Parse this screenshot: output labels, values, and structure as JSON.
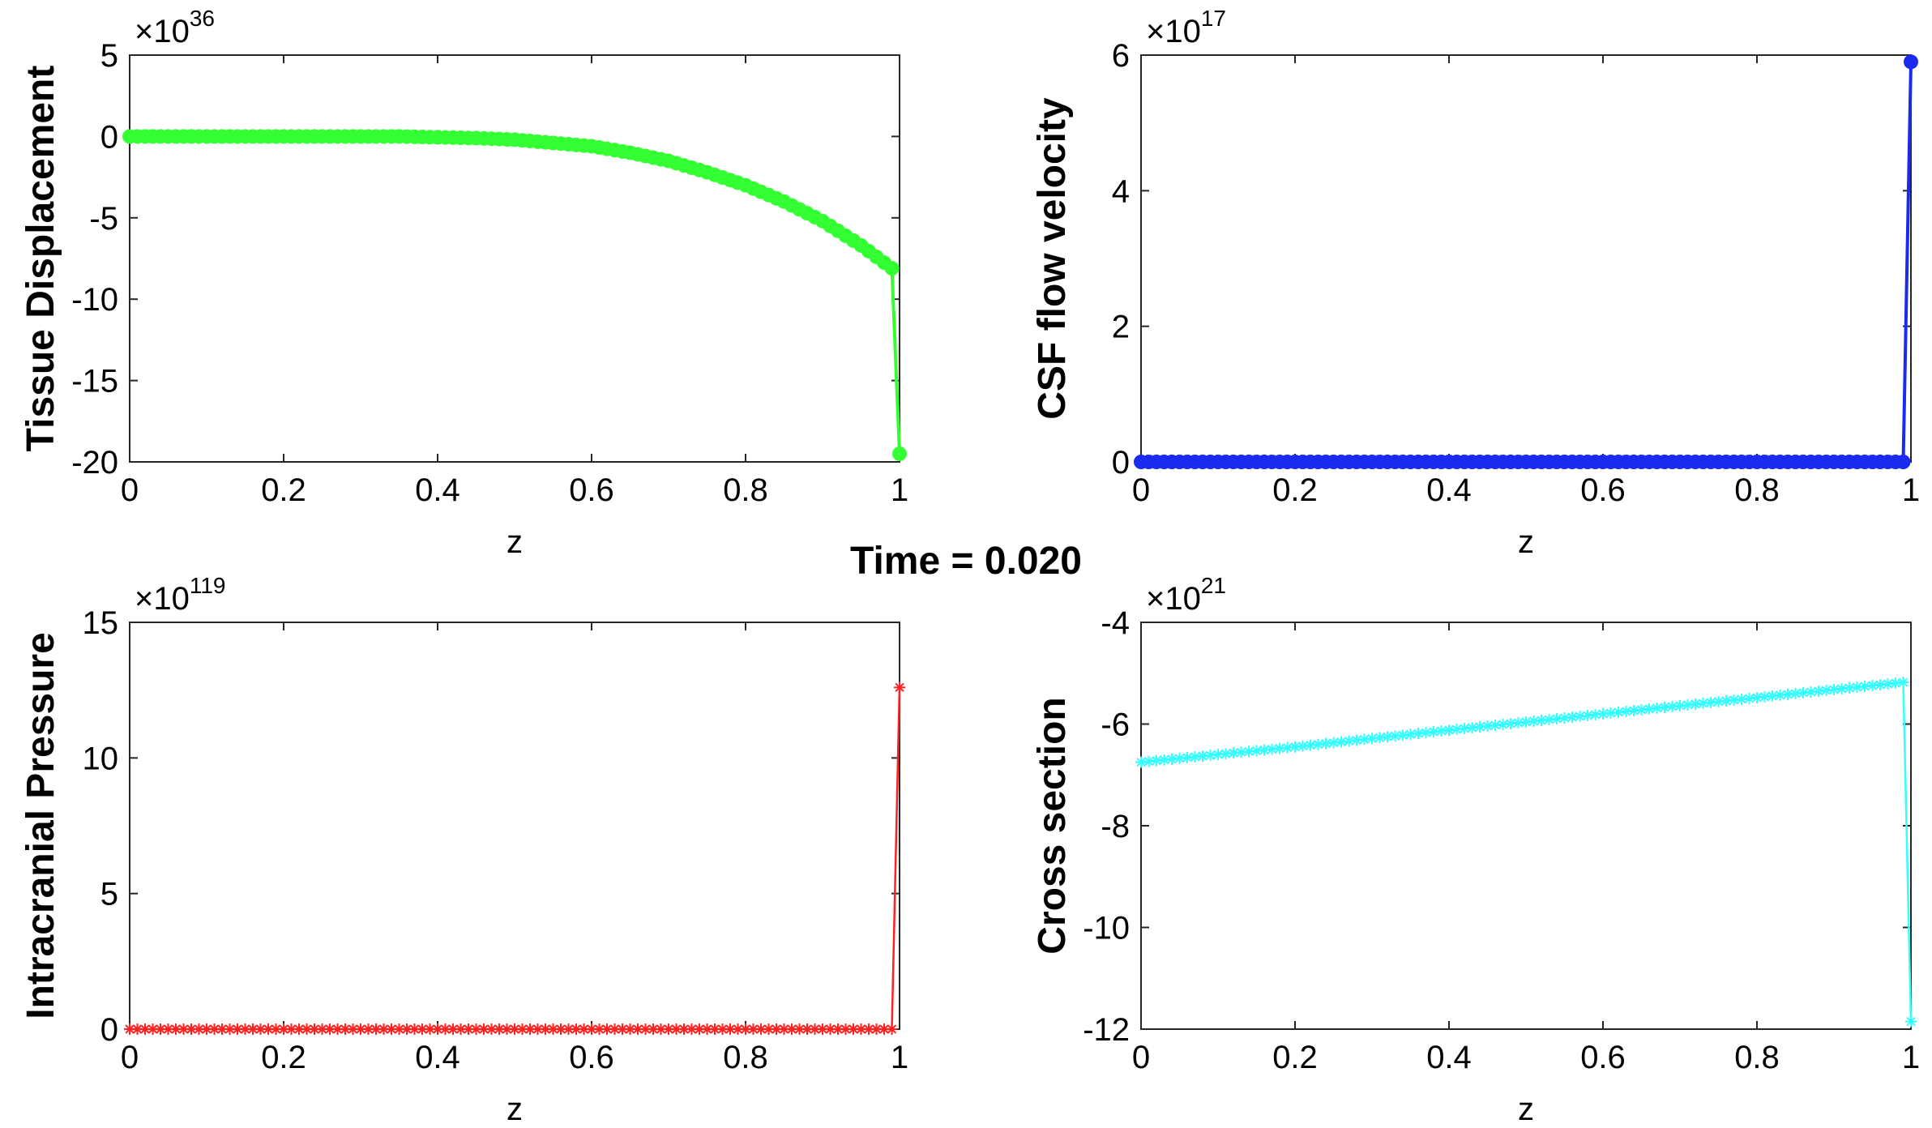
{
  "figure": {
    "suptitle": "Time = 0.020"
  },
  "chart_data": [
    {
      "type": "line",
      "marker": "filled-circle",
      "color": "#33ff33",
      "xlabel": "z",
      "ylabel": "Tissue Displacement",
      "xlim": [
        0,
        1
      ],
      "ylim": [
        -20,
        5
      ],
      "xticks": [
        "0",
        "0.2",
        "0.4",
        "0.6",
        "0.8",
        "1"
      ],
      "yticks": [
        "5",
        "0",
        "-5",
        "-10",
        "-15",
        "-20"
      ],
      "ytick_values": [
        5,
        0,
        -5,
        -10,
        -15,
        -20
      ],
      "exponent": {
        "base": "×10",
        "power": "36"
      },
      "series": [
        {
          "x": [
            0.0,
            0.05,
            0.1,
            0.15,
            0.2,
            0.25,
            0.3,
            0.35,
            0.4,
            0.45,
            0.5,
            0.55,
            0.6,
            0.65,
            0.7,
            0.75,
            0.8,
            0.85,
            0.9,
            0.95,
            0.99,
            1.0
          ],
          "y": [
            0.0,
            0.0,
            0.0,
            0.0,
            0.0,
            0.0,
            0.0,
            0.0,
            -0.05,
            -0.1,
            -0.2,
            -0.4,
            -0.6,
            -1.0,
            -1.5,
            -2.2,
            -3.0,
            -4.0,
            -5.2,
            -6.7,
            -8.1,
            -19.5
          ]
        }
      ]
    },
    {
      "type": "line",
      "marker": "filled-circle",
      "color": "#1a2aee",
      "xlabel": "z",
      "ylabel": "CSF flow velocity",
      "xlim": [
        0,
        1
      ],
      "ylim": [
        0,
        6
      ],
      "xticks": [
        "0",
        "0.2",
        "0.4",
        "0.6",
        "0.8",
        "1"
      ],
      "yticks": [
        "6",
        "4",
        "2",
        "0"
      ],
      "ytick_values": [
        6,
        4,
        2,
        0
      ],
      "exponent": {
        "base": "×10",
        "power": "17"
      },
      "series": [
        {
          "x": [
            0.0,
            0.1,
            0.2,
            0.3,
            0.4,
            0.5,
            0.6,
            0.7,
            0.8,
            0.9,
            0.99,
            1.0
          ],
          "y": [
            0,
            0,
            0,
            0,
            0,
            0,
            0,
            0,
            0,
            0,
            0,
            5.9
          ]
        }
      ]
    },
    {
      "type": "line",
      "marker": "asterisk",
      "color": "#ff2020",
      "xlabel": "z",
      "ylabel": "Intracranial Pressure",
      "xlim": [
        0,
        1
      ],
      "ylim": [
        0,
        15
      ],
      "xticks": [
        "0",
        "0.2",
        "0.4",
        "0.6",
        "0.8",
        "1"
      ],
      "yticks": [
        "15",
        "10",
        "5",
        "0"
      ],
      "ytick_values": [
        15,
        10,
        5,
        0
      ],
      "exponent": {
        "base": "×10",
        "power": "119"
      },
      "series": [
        {
          "x": [
            0.0,
            0.1,
            0.2,
            0.3,
            0.4,
            0.5,
            0.6,
            0.7,
            0.8,
            0.9,
            0.99,
            1.0
          ],
          "y": [
            0,
            0,
            0,
            0,
            0,
            0,
            0,
            0,
            0,
            0,
            0,
            12.6
          ]
        }
      ]
    },
    {
      "type": "line",
      "marker": "asterisk",
      "color": "#33ffff",
      "xlabel": "z",
      "ylabel": "Cross section",
      "xlim": [
        0,
        1
      ],
      "ylim": [
        -12,
        -4
      ],
      "xticks": [
        "0",
        "0.2",
        "0.4",
        "0.6",
        "0.8",
        "1"
      ],
      "yticks": [
        "-4",
        "-6",
        "-8",
        "-10",
        "-12"
      ],
      "ytick_values": [
        -4,
        -6,
        -8,
        -10,
        -12
      ],
      "exponent": {
        "base": "×10",
        "power": "21"
      },
      "series": [
        {
          "x": [
            0.0,
            0.2,
            0.4,
            0.6,
            0.8,
            0.99,
            1.0
          ],
          "y": [
            -6.75,
            -6.45,
            -6.12,
            -5.8,
            -5.48,
            -5.18,
            -11.85
          ]
        }
      ]
    }
  ]
}
